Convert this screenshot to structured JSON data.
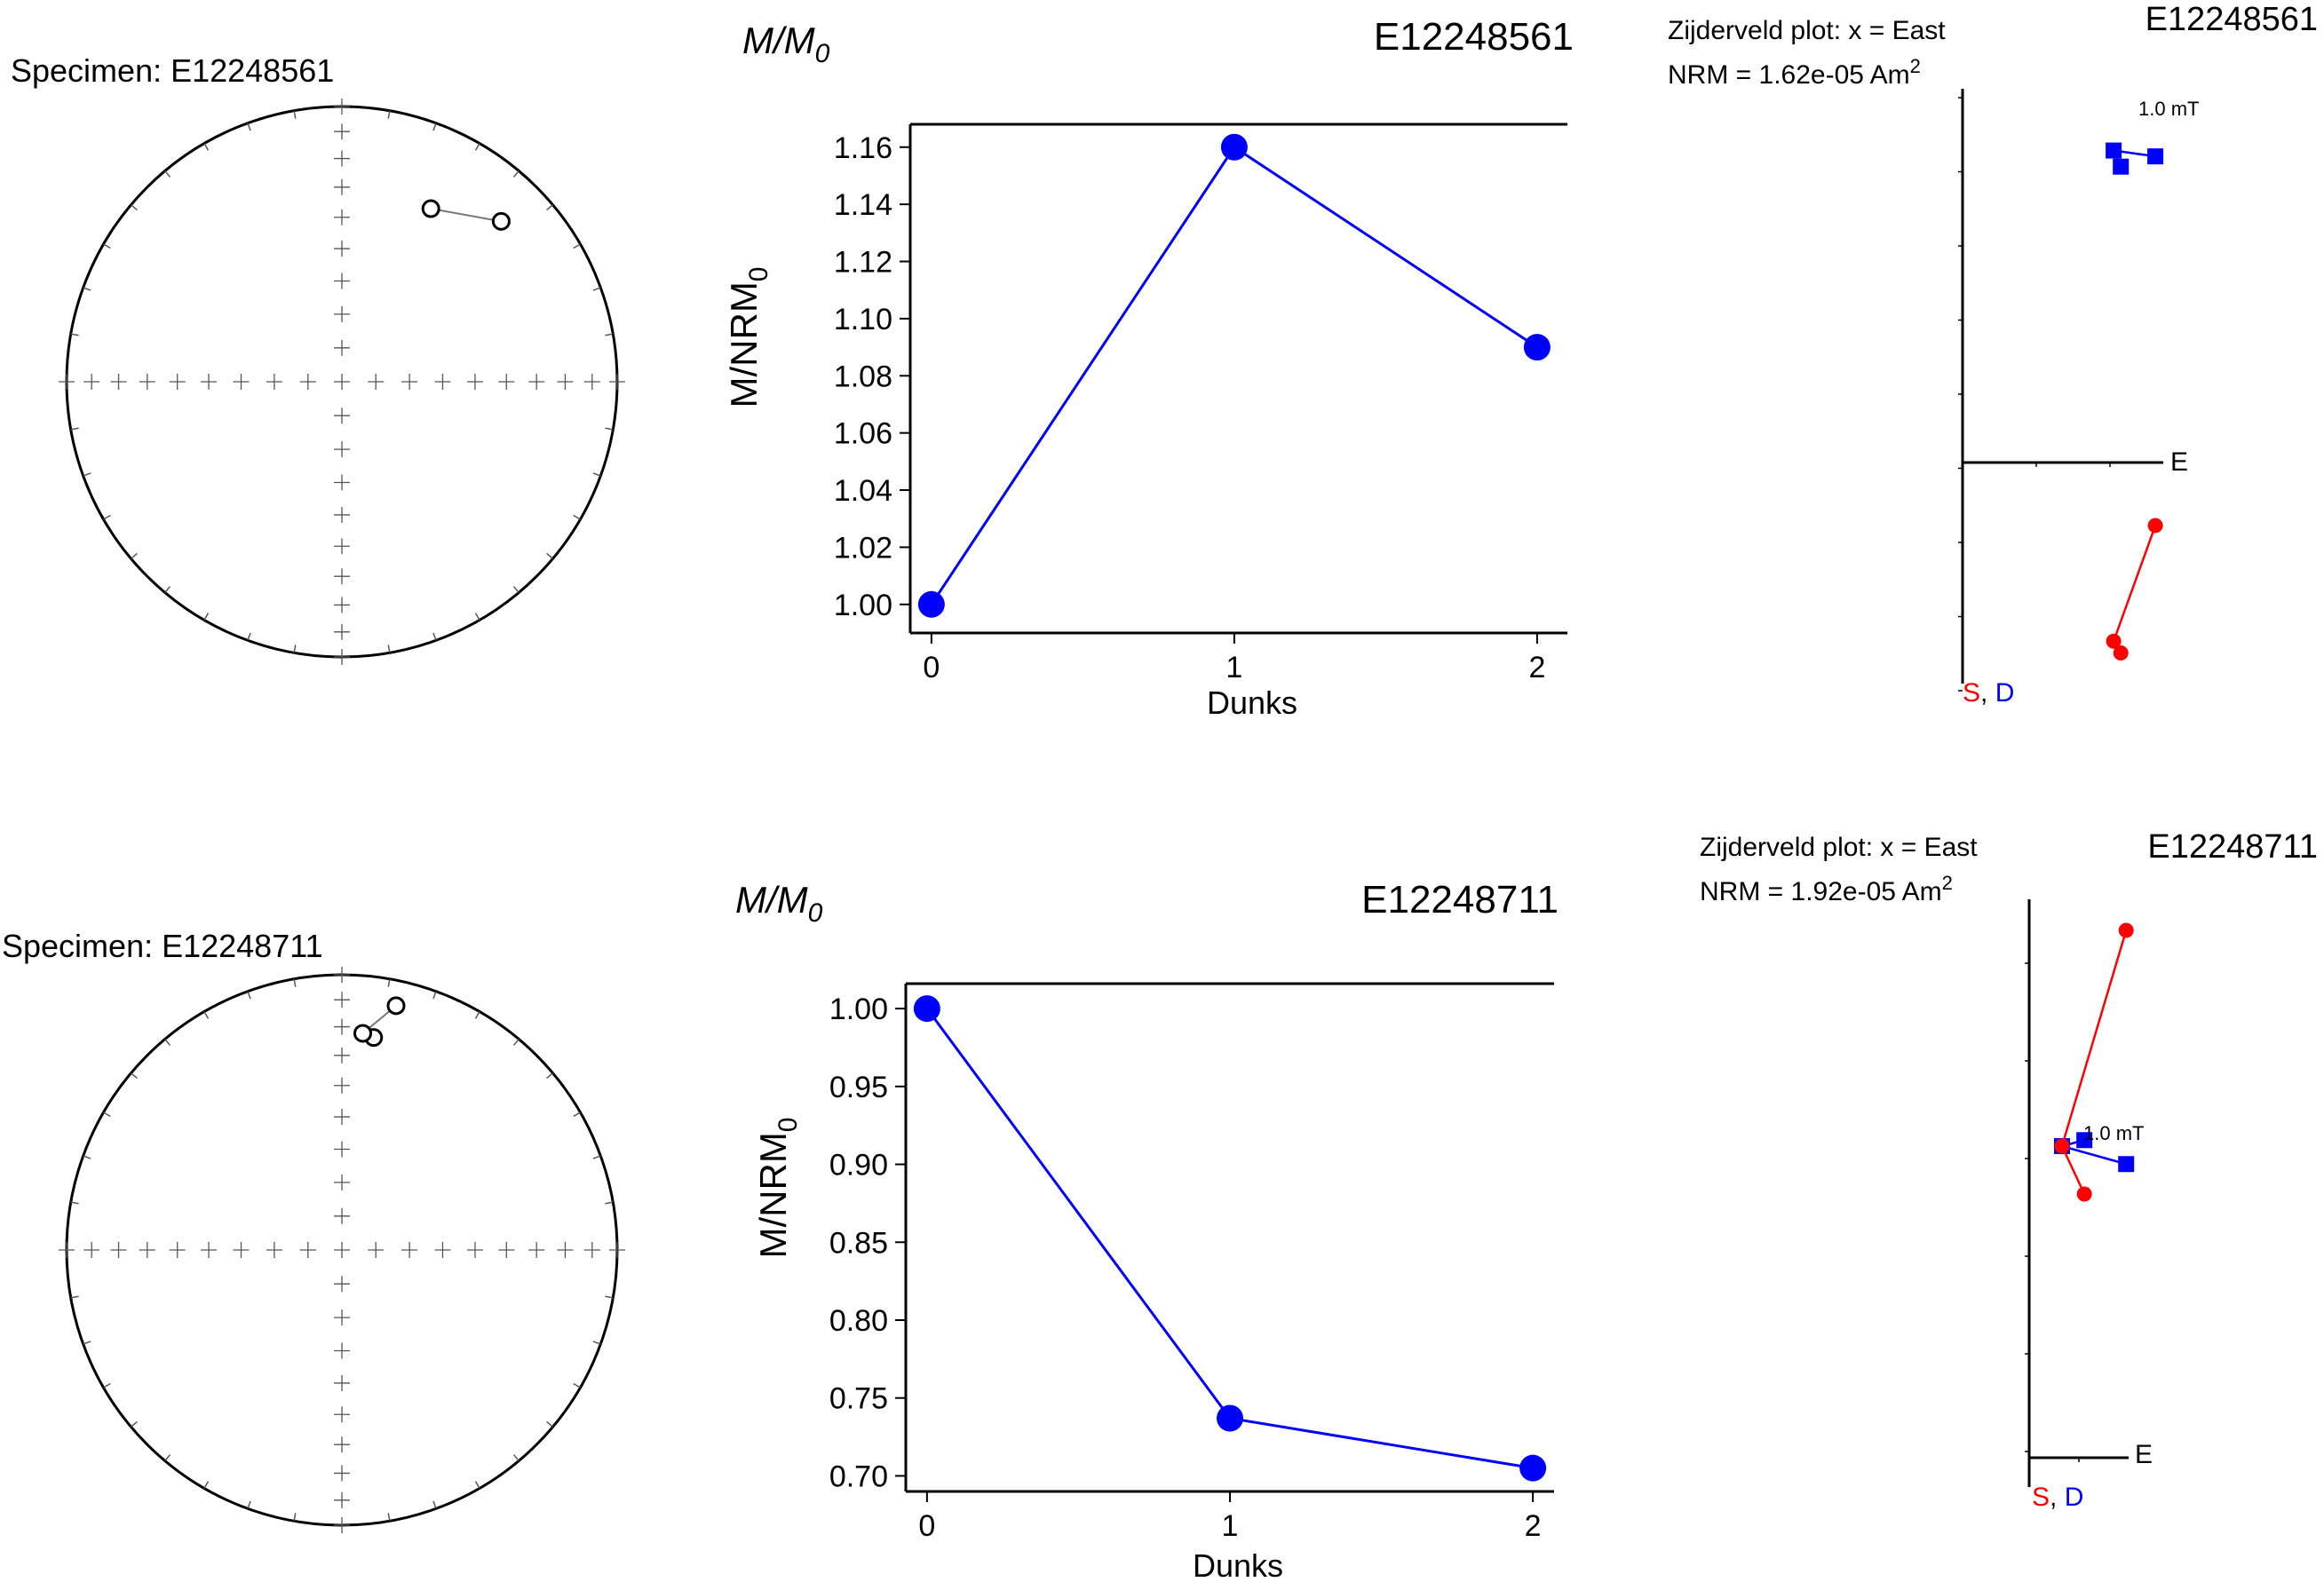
{
  "colors": {
    "blue": "#0000ff",
    "red": "#ff0000",
    "black": "#000000",
    "tick_gray": "#555555"
  },
  "panels": [
    {
      "specimen_label": "Specimen: E12248561",
      "mm0_title_main": "M/M",
      "mm0_title_sub": "0",
      "mm0_specimen": "E12248561",
      "mm0_ylabel_main": "M/NRM",
      "mm0_ylabel_sub": "0",
      "mm0_xlabel": "Dunks",
      "zij_title": "Zijderveld plot: x = East",
      "zij_nrm_text": "NRM = 1.62e-05 Am",
      "zij_nrm_sup": "2",
      "zij_specimen": "E12248561",
      "zij_axis_e": "E",
      "zij_axis_s": "S",
      "zij_axis_sep": ", ",
      "zij_axis_d": "D",
      "zij_step_label": "1.0 mT"
    },
    {
      "specimen_label": "Specimen: E12248711",
      "mm0_title_main": "M/M",
      "mm0_title_sub": "0",
      "mm0_specimen": "E12248711",
      "mm0_ylabel_main": "M/NRM",
      "mm0_ylabel_sub": "0",
      "mm0_xlabel": "Dunks",
      "zij_title": "Zijderveld plot: x = East",
      "zij_nrm_text": "NRM = 1.92e-05 Am",
      "zij_nrm_sup": "2",
      "zij_specimen": "E12248711",
      "zij_axis_e": "E",
      "zij_axis_s": "S",
      "zij_axis_sep": ", ",
      "zij_axis_d": "D",
      "zij_step_label": "1.0 mT"
    }
  ],
  "chart_data": [
    {
      "type": "scatter",
      "subtype": "equal-area stereonet",
      "title": "Specimen: E12248561",
      "series": [
        {
          "marker": "open-circle",
          "points": [
            {
              "declaration": 27.2,
              "inclination": 30
            },
            {
              "declaration": 44.8,
              "inclination": 19
            }
          ]
        }
      ]
    },
    {
      "type": "line",
      "title": "M/M0",
      "specimen": "E12248561",
      "xlabel": "Dunks",
      "ylabel": "M/NRM0",
      "x": [
        0,
        1,
        2
      ],
      "y": [
        1.0,
        1.16,
        1.09
      ],
      "xticks": [
        0,
        1,
        2
      ],
      "yticks": [
        1.0,
        1.02,
        1.04,
        1.06,
        1.08,
        1.1,
        1.12,
        1.14,
        1.16
      ],
      "xlim": [
        -0.07,
        2.1
      ],
      "ylim": [
        0.99,
        1.168
      ],
      "grid": false
    },
    {
      "type": "line",
      "subtype": "zijderveld",
      "title": "Zijderveld plot: x = East",
      "specimen": "E12248561",
      "nrm": "1.62e-05 Am2",
      "xlim": [
        0,
        1.35
      ],
      "ylim": [
        -1.5,
        2.5
      ],
      "series": [
        {
          "name": "D",
          "color": "#0000ff",
          "marker": "square",
          "points": [
            [
              1.1,
              2.02
            ],
            [
              1.05,
              2.13
            ],
            [
              1.34,
              2.09
            ]
          ]
        },
        {
          "name": "S",
          "color": "#ff0000",
          "marker": "circle",
          "points": [
            [
              1.34,
              -0.43
            ],
            [
              1.05,
              -1.22
            ],
            [
              1.1,
              -1.3
            ]
          ]
        }
      ],
      "annotations": [
        "1.0 mT"
      ]
    },
    {
      "type": "scatter",
      "subtype": "equal-area stereonet",
      "title": "Specimen: E12248711",
      "series": [
        {
          "marker": "open-circle",
          "points": [
            {
              "declaration": 8.5,
              "inclination": 23
            },
            {
              "declaration": 5.5,
              "inclination": 22
            },
            {
              "declaration": 12.5,
              "inclination": 10
            }
          ]
        }
      ]
    },
    {
      "type": "line",
      "title": "M/M0",
      "specimen": "E12248711",
      "xlabel": "Dunks",
      "ylabel": "M/NRM0",
      "x": [
        0,
        1,
        2
      ],
      "y": [
        1.0,
        0.737,
        0.705
      ],
      "xticks": [
        0,
        1,
        2
      ],
      "yticks": [
        0.7,
        0.75,
        0.8,
        0.85,
        0.9,
        0.95,
        1.0
      ],
      "xlim": [
        -0.07,
        2.07
      ],
      "ylim": [
        0.69,
        1.016
      ],
      "grid": false
    },
    {
      "type": "line",
      "subtype": "zijderveld",
      "title": "Zijderveld plot: x = East",
      "specimen": "E12248711",
      "nrm": "1.92e-05 Am2",
      "xlim": [
        0,
        0.7
      ],
      "ylim": [
        -0.5,
        4.5
      ],
      "series": [
        {
          "name": "D",
          "color": "#0000ff",
          "marker": "square",
          "points": [
            [
              0.37,
              2.65
            ],
            [
              0.22,
              2.6
            ],
            [
              0.65,
              2.45
            ]
          ]
        },
        {
          "name": "S",
          "color": "#ff0000",
          "marker": "circle",
          "points": [
            [
              0.65,
              4.4
            ],
            [
              0.22,
              2.6
            ],
            [
              0.37,
              2.2
            ]
          ]
        }
      ],
      "annotations": [
        "1.0 mT"
      ]
    }
  ]
}
